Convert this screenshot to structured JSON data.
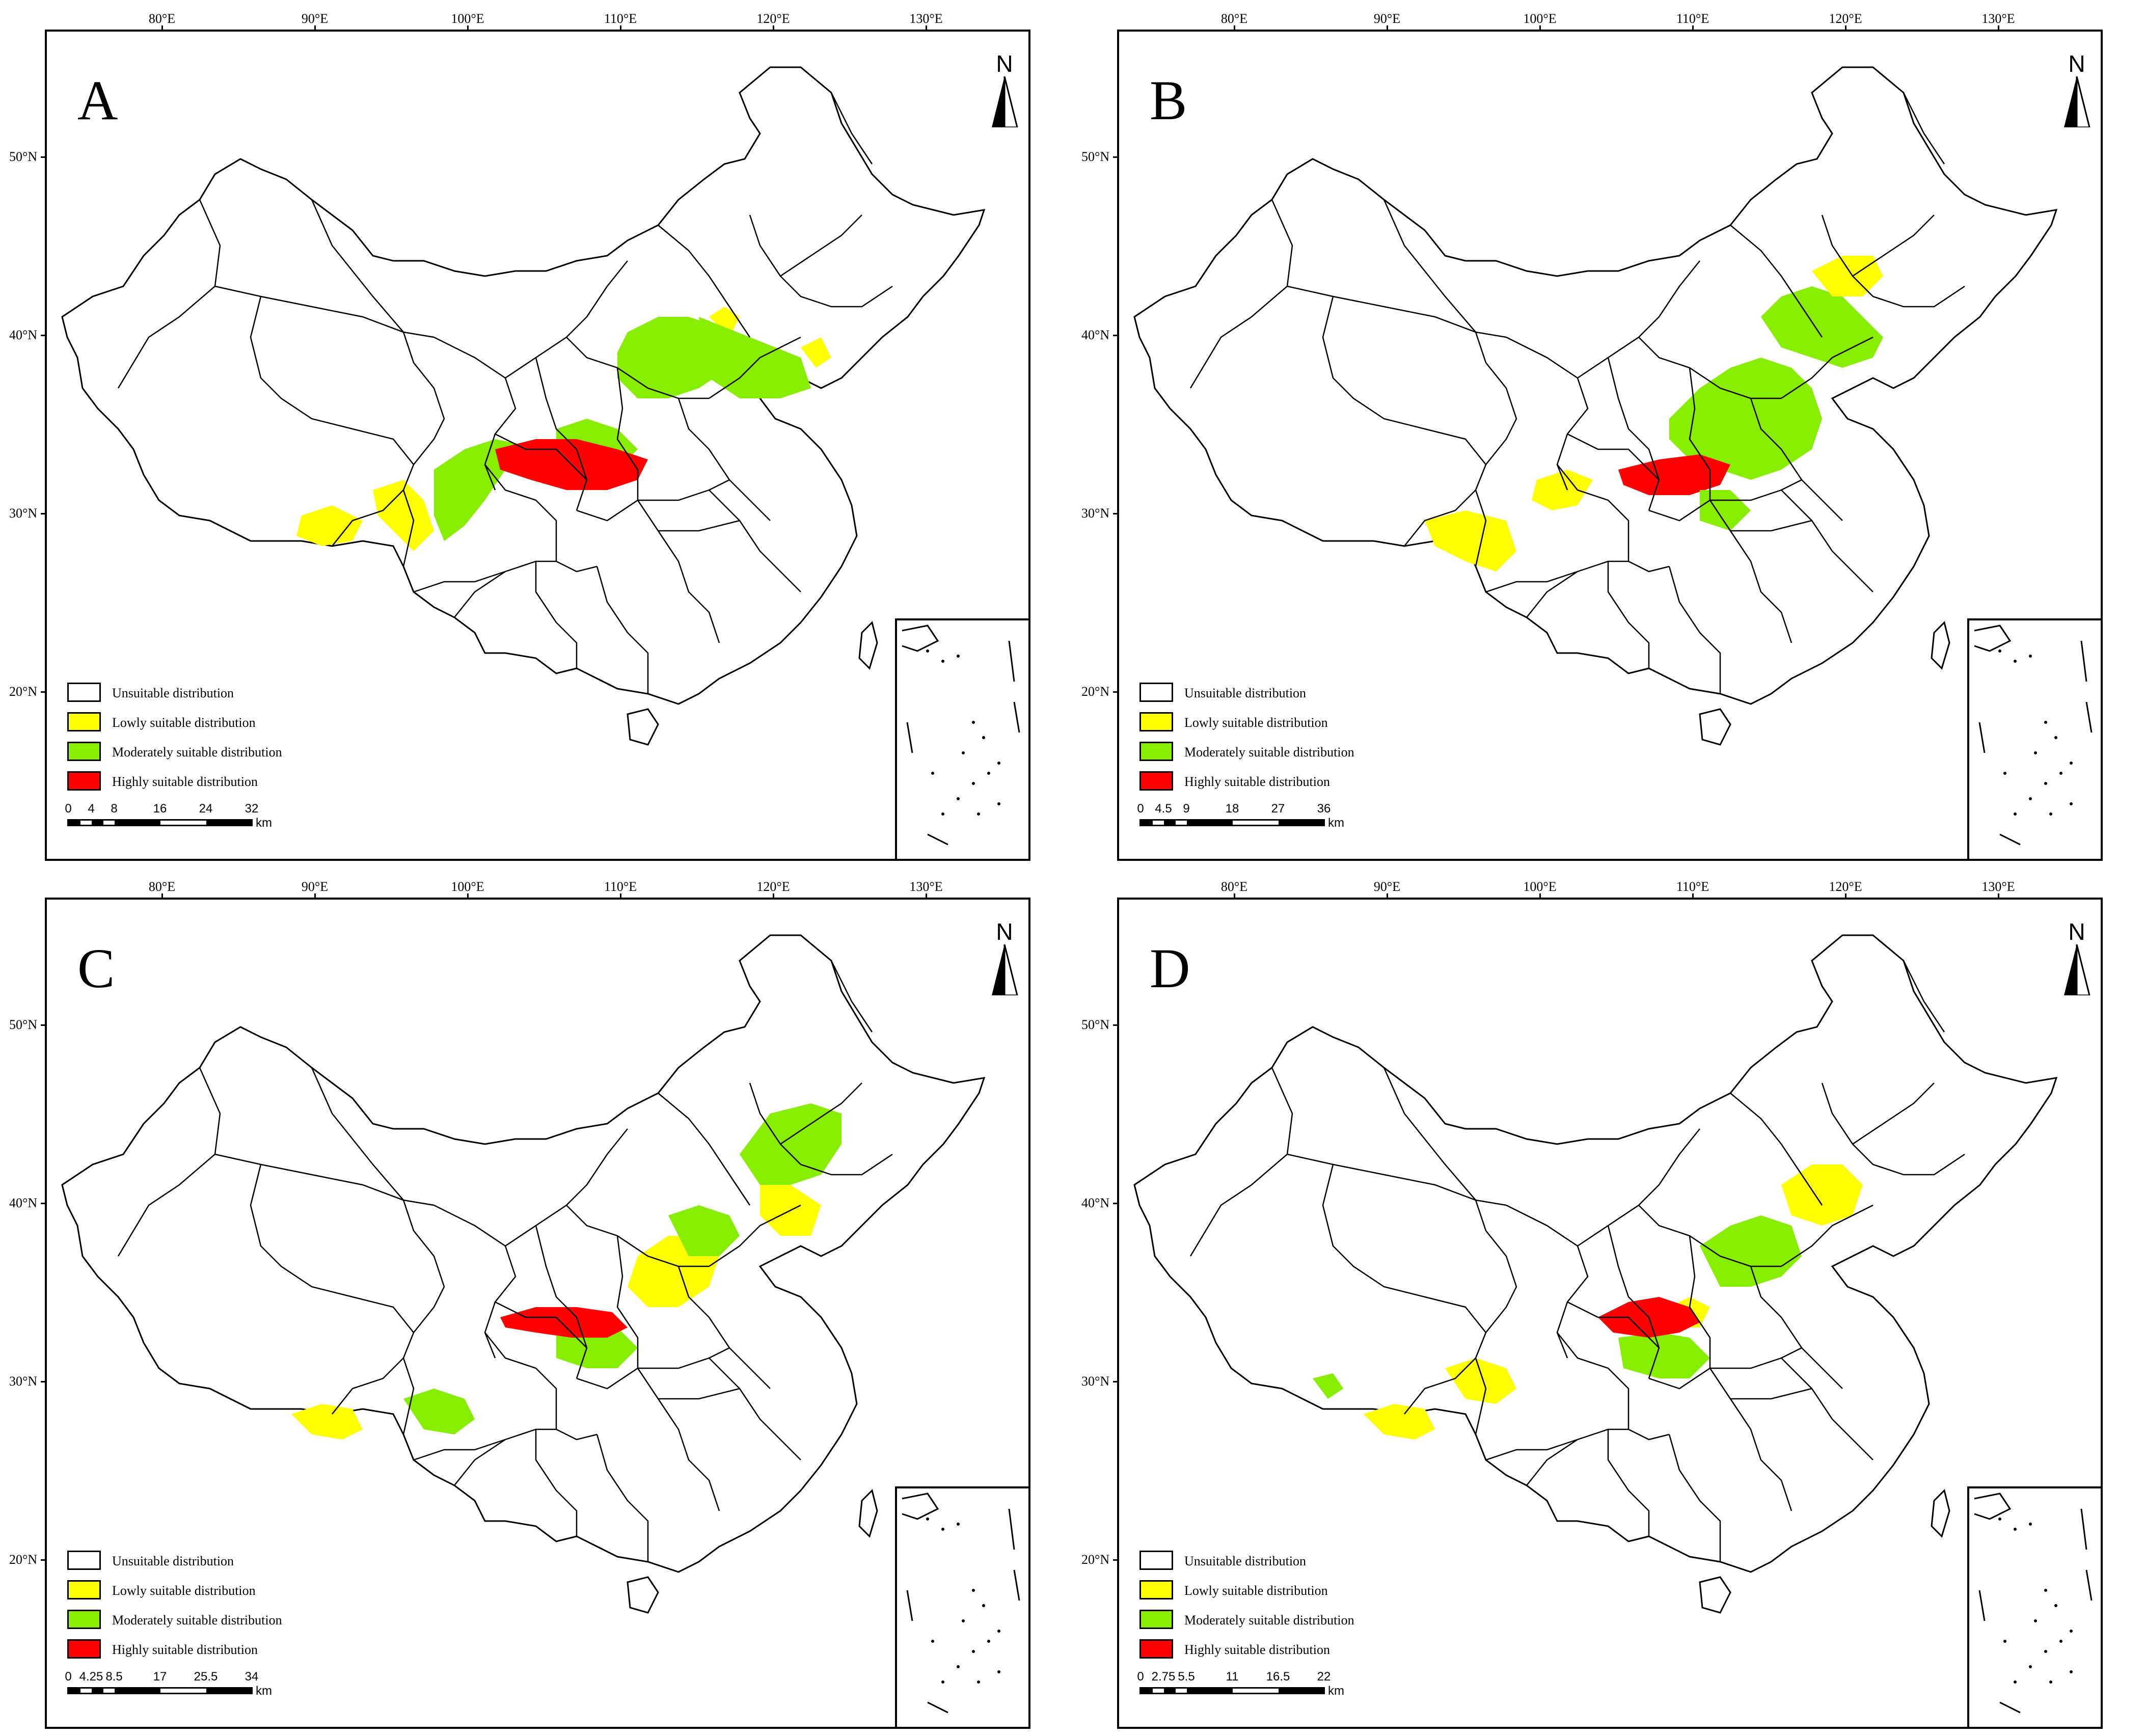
{
  "figure": {
    "legend_items": [
      {
        "label": "Unsuitable distribution",
        "color": "#ffffff"
      },
      {
        "label": "Lowly suitable distribution",
        "color": "#ffff00"
      },
      {
        "label": "Moderately suitable distribution",
        "color": "#88ee00"
      },
      {
        "label": "Highly suitable distribution",
        "color": "#ff0000"
      }
    ],
    "north_label": "N",
    "lon_ticks": [
      "80°E",
      "90°E",
      "100°E",
      "110°E",
      "120°E",
      "130°E"
    ],
    "lat_ticks": [
      "50°N",
      "40°N",
      "30°N",
      "20°N"
    ]
  },
  "panels": [
    {
      "letter": "A",
      "scale_labels": [
        "0",
        "4",
        "8",
        "16",
        "24",
        "32"
      ],
      "scale_unit": "km"
    },
    {
      "letter": "B",
      "scale_labels": [
        "0",
        "4.5",
        "9",
        "18",
        "27",
        "36"
      ],
      "scale_unit": "km"
    },
    {
      "letter": "C",
      "scale_labels": [
        "0",
        "4.25",
        "8.5",
        "17",
        "25.5",
        "34"
      ],
      "scale_unit": "km"
    },
    {
      "letter": "D",
      "scale_labels": [
        "0",
        "2.75",
        "5.5",
        "11",
        "16.5",
        "22"
      ],
      "scale_unit": "km"
    }
  ]
}
